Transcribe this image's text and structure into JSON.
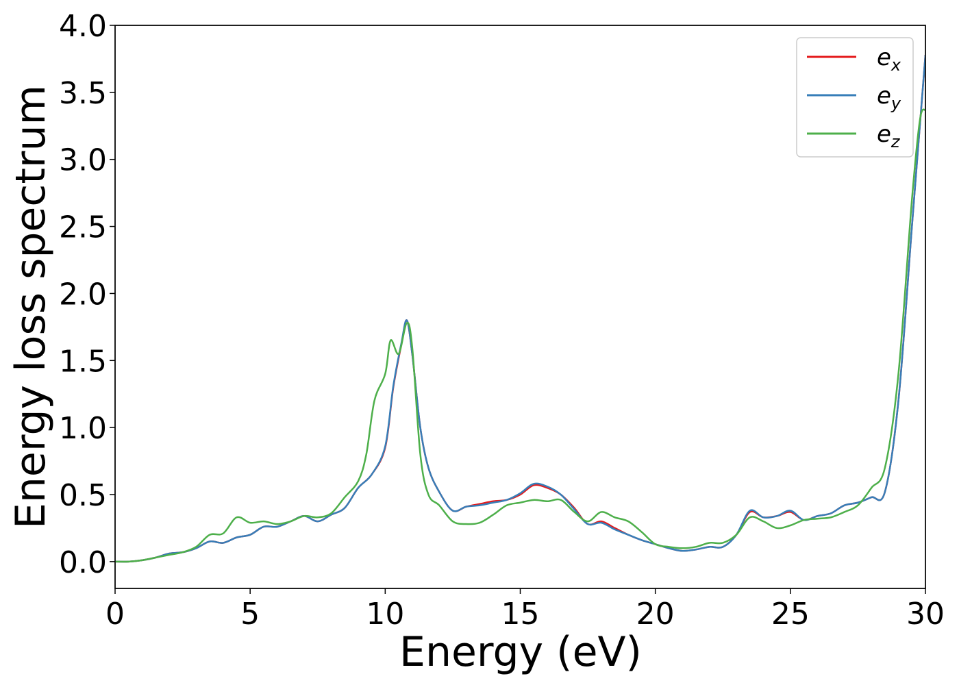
{
  "chart_data": {
    "type": "line",
    "xlabel": "Energy (eV)",
    "ylabel": "Energy loss spectrum",
    "xlim": [
      0,
      30
    ],
    "ylim": [
      -0.2,
      4.0
    ],
    "xticks": [
      0,
      5,
      10,
      15,
      20,
      25,
      30
    ],
    "yticks": [
      0.0,
      0.5,
      1.0,
      1.5,
      2.0,
      2.5,
      3.0,
      3.5,
      4.0
    ],
    "xtick_labels": [
      "0",
      "5",
      "10",
      "15",
      "20",
      "25",
      "30"
    ],
    "ytick_labels": [
      "0.0",
      "0.5",
      "1.0",
      "1.5",
      "2.0",
      "2.5",
      "3.0",
      "3.5",
      "4.0"
    ],
    "grid": false,
    "legend_position": "top-right",
    "series": [
      {
        "name": "e_x",
        "legend_base": "e",
        "legend_sub": "x",
        "color": "#e41a1c",
        "x": [
          0,
          0.5,
          1,
          1.5,
          2,
          2.5,
          3,
          3.5,
          4,
          4.5,
          5,
          5.5,
          6,
          6.5,
          7,
          7.5,
          8,
          8.5,
          9,
          9.5,
          10,
          10.3,
          10.6,
          10.8,
          11,
          11.3,
          11.6,
          12,
          12.5,
          13,
          13.5,
          14,
          14.5,
          15,
          15.5,
          16,
          16.5,
          17,
          17.5,
          18,
          18.5,
          19,
          19.5,
          20,
          20.5,
          21,
          21.5,
          22,
          22.5,
          23,
          23.5,
          24,
          24.5,
          25,
          25.5,
          26,
          26.5,
          27,
          27.5,
          28,
          28.5,
          29,
          29.5,
          30
        ],
        "y": [
          0,
          0.0,
          0.01,
          0.03,
          0.06,
          0.07,
          0.1,
          0.15,
          0.14,
          0.18,
          0.2,
          0.26,
          0.26,
          0.3,
          0.34,
          0.3,
          0.35,
          0.4,
          0.55,
          0.65,
          0.85,
          1.3,
          1.62,
          1.8,
          1.55,
          1.0,
          0.7,
          0.52,
          0.38,
          0.41,
          0.43,
          0.45,
          0.46,
          0.5,
          0.57,
          0.55,
          0.5,
          0.4,
          0.28,
          0.3,
          0.25,
          0.2,
          0.16,
          0.13,
          0.1,
          0.08,
          0.09,
          0.11,
          0.11,
          0.2,
          0.37,
          0.33,
          0.34,
          0.37,
          0.31,
          0.34,
          0.36,
          0.42,
          0.44,
          0.48,
          0.52,
          1.2,
          2.5,
          3.78
        ]
      },
      {
        "name": "e_y",
        "legend_base": "e",
        "legend_sub": "y",
        "color": "#377eb8",
        "x": [
          0,
          0.5,
          1,
          1.5,
          2,
          2.5,
          3,
          3.5,
          4,
          4.5,
          5,
          5.5,
          6,
          6.5,
          7,
          7.5,
          8,
          8.5,
          9,
          9.5,
          10,
          10.3,
          10.6,
          10.8,
          11,
          11.3,
          11.6,
          12,
          12.5,
          13,
          13.5,
          14,
          14.5,
          15,
          15.5,
          16,
          16.5,
          17,
          17.5,
          18,
          18.5,
          19,
          19.5,
          20,
          20.5,
          21,
          21.5,
          22,
          22.5,
          23,
          23.5,
          24,
          24.5,
          25,
          25.5,
          26,
          26.5,
          27,
          27.5,
          28,
          28.5,
          29,
          29.5,
          30
        ],
        "y": [
          0,
          0.0,
          0.01,
          0.03,
          0.06,
          0.07,
          0.1,
          0.15,
          0.14,
          0.18,
          0.2,
          0.26,
          0.26,
          0.3,
          0.34,
          0.3,
          0.35,
          0.4,
          0.55,
          0.65,
          0.86,
          1.31,
          1.63,
          1.8,
          1.55,
          1.0,
          0.7,
          0.52,
          0.38,
          0.41,
          0.42,
          0.44,
          0.46,
          0.51,
          0.58,
          0.56,
          0.5,
          0.39,
          0.28,
          0.29,
          0.24,
          0.2,
          0.16,
          0.13,
          0.1,
          0.08,
          0.09,
          0.11,
          0.11,
          0.2,
          0.38,
          0.33,
          0.34,
          0.38,
          0.31,
          0.34,
          0.36,
          0.42,
          0.44,
          0.48,
          0.52,
          1.2,
          2.5,
          3.78
        ]
      },
      {
        "name": "e_z",
        "legend_base": "e",
        "legend_sub": "z",
        "color": "#4daf4a",
        "x": [
          0,
          0.5,
          1,
          1.5,
          2,
          2.5,
          3,
          3.5,
          4,
          4.5,
          5,
          5.5,
          6,
          6.5,
          7,
          7.5,
          8,
          8.5,
          9,
          9.3,
          9.6,
          10,
          10.2,
          10.5,
          10.8,
          11,
          11.3,
          11.6,
          12,
          12.5,
          13,
          13.5,
          14,
          14.5,
          15,
          15.5,
          16,
          16.5,
          17,
          17.5,
          18,
          18.5,
          19,
          19.5,
          20,
          20.5,
          21,
          21.5,
          22,
          22.5,
          23,
          23.5,
          24,
          24.5,
          25,
          25.5,
          26,
          26.5,
          27,
          27.5,
          28,
          28.5,
          29,
          29.5,
          29.8,
          30
        ],
        "y": [
          0,
          0.0,
          0.01,
          0.03,
          0.05,
          0.07,
          0.11,
          0.2,
          0.21,
          0.33,
          0.29,
          0.3,
          0.28,
          0.3,
          0.34,
          0.33,
          0.36,
          0.48,
          0.6,
          0.8,
          1.2,
          1.4,
          1.65,
          1.55,
          1.78,
          1.6,
          0.8,
          0.5,
          0.42,
          0.3,
          0.28,
          0.29,
          0.35,
          0.42,
          0.44,
          0.46,
          0.45,
          0.46,
          0.37,
          0.3,
          0.37,
          0.33,
          0.3,
          0.22,
          0.13,
          0.11,
          0.1,
          0.11,
          0.14,
          0.14,
          0.2,
          0.33,
          0.3,
          0.25,
          0.27,
          0.31,
          0.32,
          0.33,
          0.37,
          0.42,
          0.55,
          0.7,
          1.4,
          2.7,
          3.3,
          3.37
        ]
      }
    ]
  }
}
